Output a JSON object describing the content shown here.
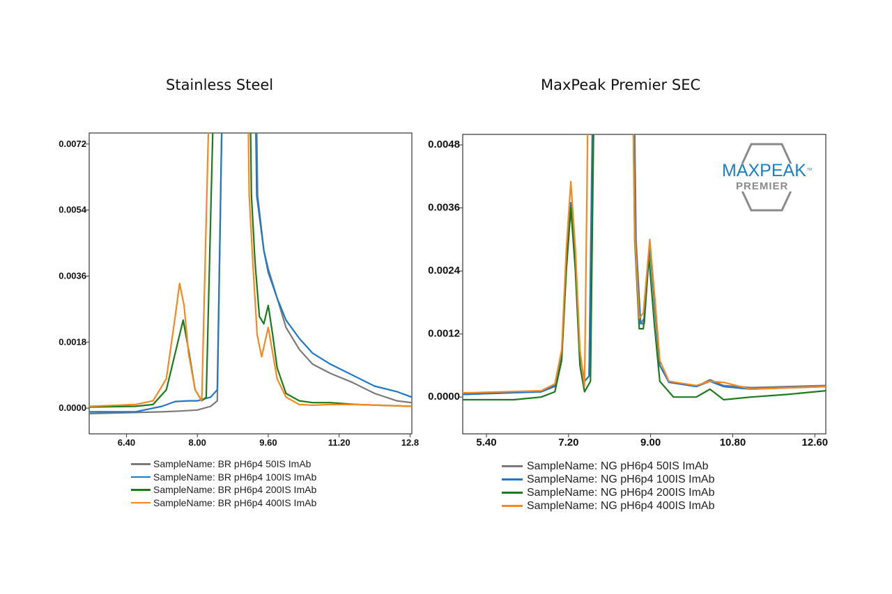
{
  "colors": {
    "gray": "#7a7a7a",
    "blue": "#1f77c8",
    "green": "#1b7a1b",
    "orange": "#f5891f",
    "logo_blue": "#1a7fc7",
    "logo_gray": "#8a8a8a"
  },
  "logo": {
    "main_text": "MAXPEAK",
    "tm": "TM",
    "sub_text": "PREMIER",
    "icon": "maxpeak-hexagon-logo"
  },
  "chart_data": [
    {
      "type": "line",
      "title": "Stainless Steel",
      "xlabel": "",
      "ylabel": "",
      "xlim": [
        5.56,
        12.84
      ],
      "ylim": [
        -0.0007,
        0.0075
      ],
      "x_ticks": [
        6.4,
        8.0,
        9.6,
        11.2,
        12.8
      ],
      "x_tick_labels": [
        "6.40",
        "8.00",
        "9.60",
        "11.20",
        "12.8"
      ],
      "y_ticks": [
        0.0,
        0.0018,
        0.0036,
        0.0054,
        0.0072
      ],
      "y_tick_labels": [
        "0.0000",
        "0.0018",
        "0.0036",
        "0.0054",
        "0.0072"
      ],
      "legend": "bottom",
      "series": [
        {
          "name": "SampleName: BR pH6p4 50IS ImAb",
          "color_key": "gray",
          "points": [
            [
              5.56,
              -0.00015
            ],
            [
              7.2,
              -0.0001
            ],
            [
              7.6,
              -8e-05
            ],
            [
              8.0,
              -5e-05
            ],
            [
              8.3,
              5e-05
            ],
            [
              8.45,
              0.0002
            ],
            [
              8.55,
              0.0076
            ],
            [
              9.34,
              0.0076
            ],
            [
              9.36,
              0.0058
            ],
            [
              9.5,
              0.0043
            ],
            [
              9.6,
              0.0038
            ],
            [
              9.8,
              0.003
            ],
            [
              10.0,
              0.0022
            ],
            [
              10.3,
              0.0016
            ],
            [
              10.6,
              0.0012
            ],
            [
              11.0,
              0.00095
            ],
            [
              11.5,
              0.0007
            ],
            [
              12.0,
              0.0004
            ],
            [
              12.5,
              0.0002
            ],
            [
              12.84,
              0.00015
            ]
          ]
        },
        {
          "name": "SampleName: BR pH6p4 100IS ImAb",
          "color_key": "blue",
          "points": [
            [
              5.56,
              -0.0001
            ],
            [
              6.6,
              -0.0001
            ],
            [
              7.2,
              5e-05
            ],
            [
              7.5,
              0.00018
            ],
            [
              7.8,
              0.0002
            ],
            [
              8.0,
              0.0002
            ],
            [
              8.3,
              0.0003
            ],
            [
              8.45,
              0.0005
            ],
            [
              8.55,
              0.0076
            ],
            [
              9.32,
              0.0076
            ],
            [
              9.34,
              0.0058
            ],
            [
              9.5,
              0.0043
            ],
            [
              9.6,
              0.0037
            ],
            [
              9.8,
              0.003
            ],
            [
              10.0,
              0.0024
            ],
            [
              10.3,
              0.0019
            ],
            [
              10.6,
              0.0015
            ],
            [
              11.0,
              0.0012
            ],
            [
              11.5,
              0.0009
            ],
            [
              12.0,
              0.0006
            ],
            [
              12.5,
              0.00045
            ],
            [
              12.84,
              0.0003
            ]
          ]
        },
        {
          "name": "SampleName: BR pH6p4 200IS ImAb",
          "color_key": "green",
          "points": [
            [
              5.56,
              3e-05
            ],
            [
              6.6,
              5e-05
            ],
            [
              7.0,
              0.0001
            ],
            [
              7.3,
              0.0005
            ],
            [
              7.5,
              0.0015
            ],
            [
              7.68,
              0.0024
            ],
            [
              7.8,
              0.0016
            ],
            [
              7.95,
              0.0005
            ],
            [
              8.1,
              0.0002
            ],
            [
              8.2,
              0.0003
            ],
            [
              8.35,
              0.0076
            ],
            [
              9.2,
              0.0076
            ],
            [
              9.22,
              0.0058
            ],
            [
              9.3,
              0.004
            ],
            [
              9.4,
              0.0025
            ],
            [
              9.5,
              0.0023
            ],
            [
              9.6,
              0.0028
            ],
            [
              9.7,
              0.002
            ],
            [
              9.8,
              0.0011
            ],
            [
              10.0,
              0.0004
            ],
            [
              10.3,
              0.0002
            ],
            [
              10.6,
              0.00015
            ],
            [
              11.0,
              0.00015
            ],
            [
              11.6,
              0.0001
            ],
            [
              12.84,
              5e-05
            ]
          ]
        },
        {
          "name": "SampleName: BR pH6p4 400IS ImAb",
          "color_key": "orange",
          "points": [
            [
              5.56,
              5e-05
            ],
            [
              6.6,
              0.0001
            ],
            [
              7.0,
              0.0002
            ],
            [
              7.3,
              0.0008
            ],
            [
              7.5,
              0.0025
            ],
            [
              7.6,
              0.0034
            ],
            [
              7.7,
              0.0028
            ],
            [
              7.8,
              0.0015
            ],
            [
              7.95,
              0.0005
            ],
            [
              8.1,
              0.0002
            ],
            [
              8.25,
              0.0076
            ],
            [
              9.15,
              0.0076
            ],
            [
              9.17,
              0.0058
            ],
            [
              9.25,
              0.004
            ],
            [
              9.35,
              0.002
            ],
            [
              9.45,
              0.0014
            ],
            [
              9.6,
              0.0022
            ],
            [
              9.7,
              0.0015
            ],
            [
              9.8,
              0.0008
            ],
            [
              10.0,
              0.0003
            ],
            [
              10.3,
              0.0001
            ],
            [
              10.6,
              8e-05
            ],
            [
              11.0,
              0.0001
            ],
            [
              11.6,
              0.0001
            ],
            [
              12.84,
              5e-05
            ]
          ]
        }
      ]
    },
    {
      "type": "line",
      "title": "MaxPeak Premier SEC",
      "xlabel": "",
      "ylabel": "",
      "xlim": [
        4.88,
        12.84
      ],
      "ylim": [
        -0.0007,
        0.005
      ],
      "x_ticks": [
        5.4,
        7.2,
        9.0,
        10.8,
        12.6
      ],
      "x_tick_labels": [
        "5.40",
        "7.20",
        "9.00",
        "10.80",
        "12.60"
      ],
      "y_ticks": [
        0.0,
        0.0012,
        0.0024,
        0.0036,
        0.0048
      ],
      "y_tick_labels": [
        "0.0000",
        "0.0012",
        "0.0024",
        "0.0036",
        "0.0048"
      ],
      "legend": "bottom",
      "series": [
        {
          "name": "SampleName: NG pH6p4 50IS ImAb",
          "color_key": "gray",
          "points": [
            [
              4.88,
              5e-05
            ],
            [
              6.6,
              0.0001
            ],
            [
              6.9,
              0.0002
            ],
            [
              7.05,
              0.0008
            ],
            [
              7.15,
              0.0025
            ],
            [
              7.25,
              0.0036
            ],
            [
              7.35,
              0.0026
            ],
            [
              7.45,
              0.0008
            ],
            [
              7.55,
              0.0003
            ],
            [
              7.65,
              0.0004
            ],
            [
              7.72,
              0.0051
            ],
            [
              8.65,
              0.0051
            ],
            [
              8.68,
              0.003
            ],
            [
              8.78,
              0.0014
            ],
            [
              8.86,
              0.0015
            ],
            [
              8.98,
              0.0029
            ],
            [
              9.1,
              0.0016
            ],
            [
              9.2,
              0.0006
            ],
            [
              9.4,
              0.0003
            ],
            [
              10.0,
              0.0002
            ],
            [
              10.3,
              0.00033
            ],
            [
              10.6,
              0.00022
            ],
            [
              11.2,
              0.00018
            ],
            [
              12.84,
              0.00022
            ]
          ]
        },
        {
          "name": "SampleName: NG pH6p4 100IS ImAb",
          "color_key": "blue",
          "points": [
            [
              4.88,
              5e-05
            ],
            [
              6.6,
              0.0001
            ],
            [
              6.9,
              0.00022
            ],
            [
              7.05,
              0.0008
            ],
            [
              7.15,
              0.0025
            ],
            [
              7.25,
              0.0037
            ],
            [
              7.35,
              0.0026
            ],
            [
              7.45,
              0.0008
            ],
            [
              7.55,
              0.0003
            ],
            [
              7.65,
              0.0004
            ],
            [
              7.73,
              0.0051
            ],
            [
              8.63,
              0.0051
            ],
            [
              8.66,
              0.003
            ],
            [
              8.78,
              0.0014
            ],
            [
              8.86,
              0.0014
            ],
            [
              8.98,
              0.0029
            ],
            [
              9.1,
              0.0017
            ],
            [
              9.2,
              0.0006
            ],
            [
              9.4,
              0.00028
            ],
            [
              10.0,
              0.0002
            ],
            [
              10.3,
              0.0003
            ],
            [
              10.6,
              0.0002
            ],
            [
              11.2,
              0.00015
            ],
            [
              12.84,
              0.0002
            ]
          ]
        },
        {
          "name": "SampleName: NG pH6p4 200IS ImAb",
          "color_key": "green",
          "points": [
            [
              4.88,
              -5e-05
            ],
            [
              6.0,
              -5e-05
            ],
            [
              6.6,
              0.0
            ],
            [
              6.9,
              0.0001
            ],
            [
              7.05,
              0.0007
            ],
            [
              7.15,
              0.0024
            ],
            [
              7.25,
              0.0036
            ],
            [
              7.35,
              0.0024
            ],
            [
              7.45,
              0.0006
            ],
            [
              7.55,
              0.0001
            ],
            [
              7.68,
              0.0003
            ],
            [
              7.75,
              0.0051
            ],
            [
              8.62,
              0.0051
            ],
            [
              8.65,
              0.003
            ],
            [
              8.75,
              0.0013
            ],
            [
              8.84,
              0.0013
            ],
            [
              8.96,
              0.0027
            ],
            [
              9.08,
              0.0014
            ],
            [
              9.2,
              0.0003
            ],
            [
              9.5,
              0.0
            ],
            [
              10.0,
              0.0
            ],
            [
              10.3,
              0.00015
            ],
            [
              10.6,
              -5e-05
            ],
            [
              11.2,
              0.0
            ],
            [
              12.0,
              5e-05
            ],
            [
              12.84,
              0.00012
            ]
          ]
        },
        {
          "name": "SampleName: NG pH6p4 400IS ImAb",
          "color_key": "orange",
          "points": [
            [
              4.88,
              8e-05
            ],
            [
              6.6,
              0.00012
            ],
            [
              6.9,
              0.00025
            ],
            [
              7.05,
              0.0009
            ],
            [
              7.15,
              0.0028
            ],
            [
              7.25,
              0.0041
            ],
            [
              7.35,
              0.0028
            ],
            [
              7.45,
              0.0009
            ],
            [
              7.55,
              0.0002
            ],
            [
              7.62,
              0.0051
            ],
            [
              8.62,
              0.0051
            ],
            [
              8.65,
              0.0031
            ],
            [
              8.75,
              0.0015
            ],
            [
              8.84,
              0.0016
            ],
            [
              8.98,
              0.003
            ],
            [
              9.1,
              0.0018
            ],
            [
              9.2,
              0.0007
            ],
            [
              9.4,
              0.0003
            ],
            [
              10.0,
              0.00022
            ],
            [
              10.3,
              0.0003
            ],
            [
              10.6,
              0.00028
            ],
            [
              11.2,
              0.00015
            ],
            [
              12.84,
              0.0002
            ]
          ]
        }
      ]
    }
  ]
}
